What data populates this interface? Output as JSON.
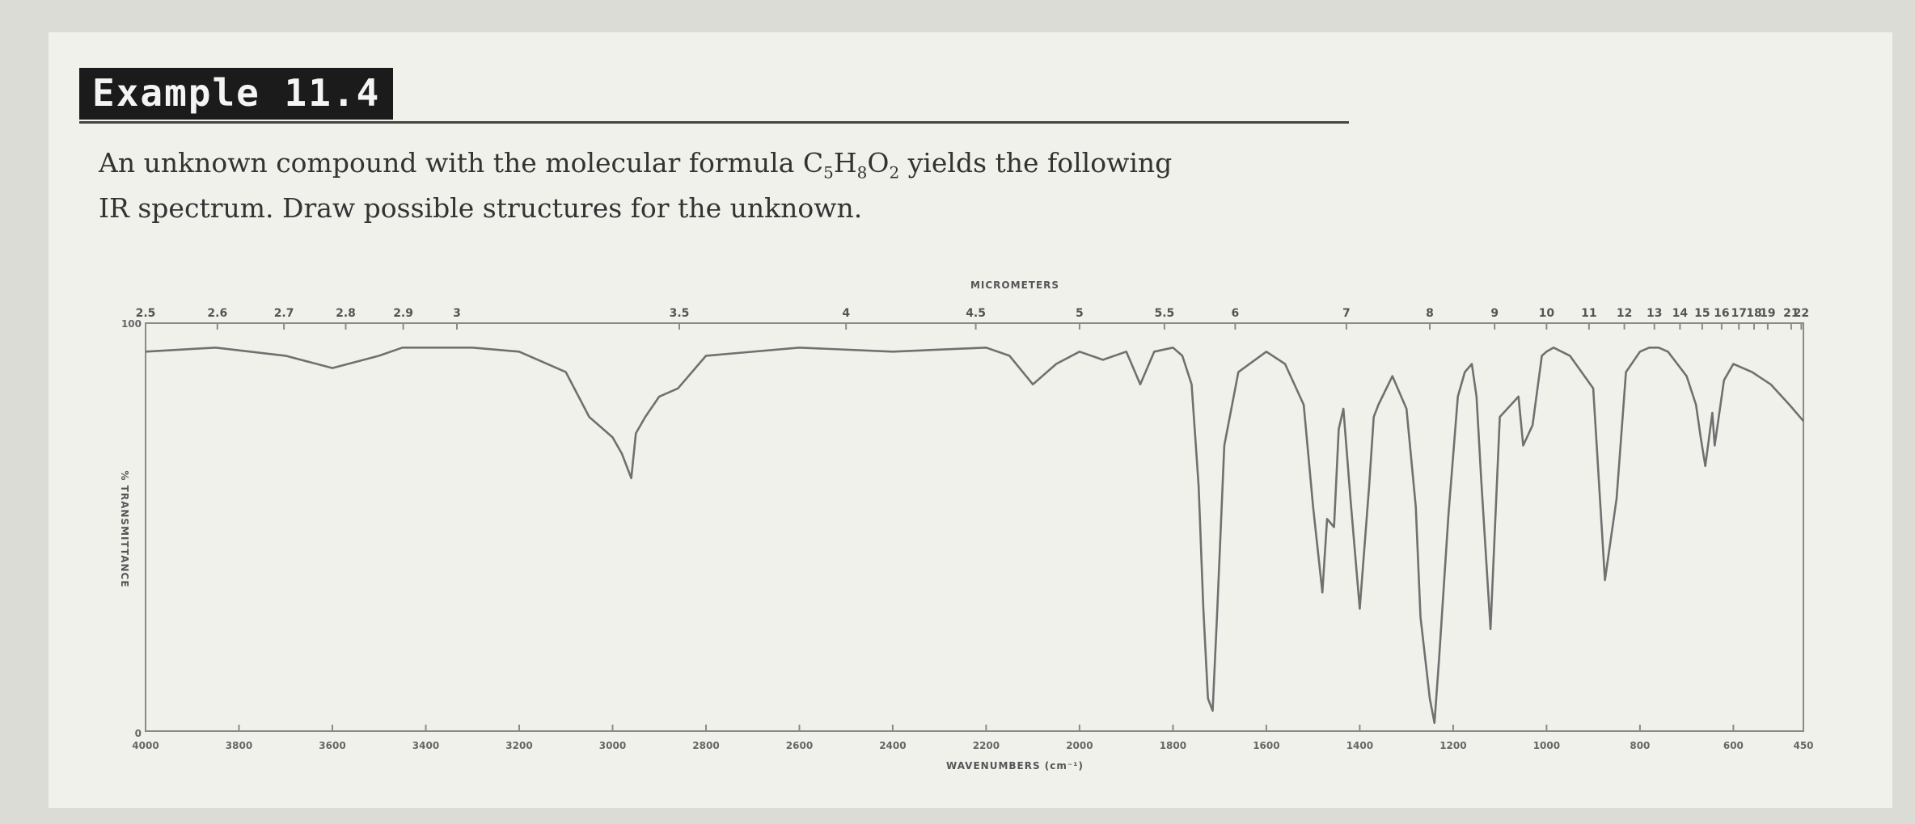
{
  "example": {
    "label": "Example 11.4"
  },
  "problem": {
    "text_before": "An unknown compound with the molecular formula C",
    "c_sub": "5",
    "h_letter": "H",
    "h_sub": "8",
    "o_letter": "O",
    "o_sub": "2",
    "text_after": " yields the following",
    "line2": "IR spectrum. Draw possible structures for the unknown."
  },
  "chart_data": {
    "type": "line",
    "title": "",
    "top_axis_label": "MICROMETERS",
    "xlabel": "WAVENUMBERS (cm⁻¹)",
    "ylabel": "% TRANSMITTANCE",
    "y_top_label": "100",
    "y_bottom_label": "0",
    "xlim": [
      4000,
      450
    ],
    "ylim": [
      0,
      100
    ],
    "micrometer_ticks": [
      "2.5",
      "2.6",
      "2.7",
      "2.8",
      "2.9",
      "3",
      "3.5",
      "4",
      "4.5",
      "5",
      "5.5",
      "6",
      "7",
      "8",
      "9",
      "10",
      "11",
      "12",
      "13",
      "14",
      "15",
      "16",
      "17",
      "18",
      "19",
      "21",
      "22"
    ],
    "wavenumber_ticks": [
      "4000",
      "3800",
      "3600",
      "3400",
      "3200",
      "3000",
      "2800",
      "2600",
      "2400",
      "2200",
      "2000",
      "1800",
      "1600",
      "1400",
      "1200",
      "1000",
      "800",
      "600",
      "450"
    ],
    "series": [
      {
        "x": [
          4000,
          3850,
          3700,
          3600,
          3500,
          3450,
          3400,
          3300,
          3200,
          3100,
          3050,
          3000,
          2980,
          2960,
          2950,
          2930,
          2900,
          2860,
          2800,
          2600,
          2400,
          2200,
          2150,
          2100,
          2050,
          2000,
          1950,
          1900,
          1870,
          1840,
          1800,
          1780,
          1760,
          1745,
          1735,
          1725,
          1715,
          1705,
          1690,
          1660,
          1600,
          1560,
          1520,
          1500,
          1480,
          1470,
          1455,
          1445,
          1435,
          1420,
          1400,
          1380,
          1370,
          1360,
          1330,
          1300,
          1280,
          1270,
          1250,
          1240,
          1230,
          1210,
          1190,
          1175,
          1160,
          1150,
          1140,
          1120,
          1100,
          1060,
          1050,
          1030,
          1010,
          1000,
          985,
          950,
          900,
          875,
          850,
          830,
          800,
          780,
          760,
          740,
          720,
          700,
          680,
          670,
          660,
          645,
          640,
          620,
          600,
          560,
          520,
          480,
          450
        ],
        "y": [
          93,
          94,
          92,
          89,
          92,
          94,
          94,
          94,
          93,
          88,
          77,
          72,
          68,
          62,
          73,
          77,
          82,
          84,
          92,
          94,
          93,
          94,
          92,
          85,
          90,
          93,
          91,
          93,
          85,
          93,
          94,
          92,
          85,
          60,
          30,
          8,
          5,
          30,
          70,
          88,
          93,
          90,
          80,
          55,
          34,
          52,
          50,
          74,
          79,
          57,
          30,
          60,
          77,
          80,
          87,
          79,
          55,
          28,
          8,
          2,
          18,
          53,
          82,
          88,
          90,
          82,
          62,
          25,
          77,
          82,
          70,
          75,
          92,
          93,
          94,
          92,
          84,
          37,
          57,
          88,
          93,
          94,
          94,
          93,
          90,
          87,
          80,
          72,
          65,
          78,
          70,
          86,
          90,
          88,
          85,
          80,
          76
        ]
      }
    ],
    "grid": false,
    "legend": "none"
  }
}
